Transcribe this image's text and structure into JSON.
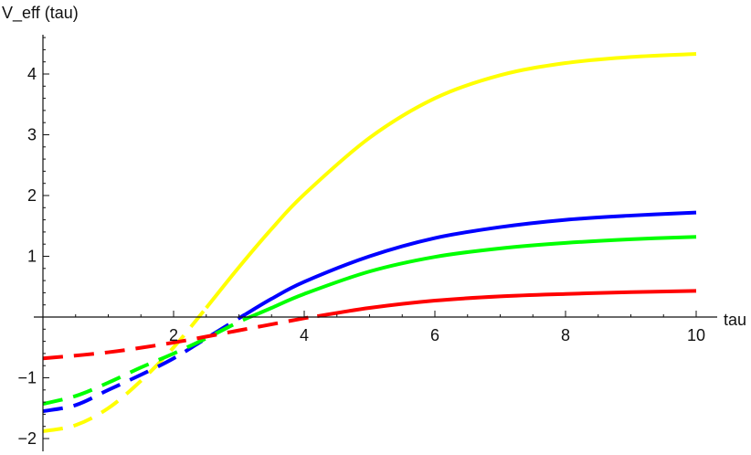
{
  "chart_data": {
    "type": "line",
    "title": "",
    "xlabel": "tau",
    "ylabel": "V_eff (tau)",
    "xlim": [
      0,
      10.5
    ],
    "ylim": [
      -2.2,
      4.7
    ],
    "x_ticks": [
      2,
      4,
      6,
      8,
      10
    ],
    "y_ticks": [
      -2,
      -1,
      1,
      2,
      3,
      4
    ],
    "grid": false,
    "legend": "none",
    "series": [
      {
        "color": "#ffff00",
        "points": [
          [
            0,
            -1.88
          ],
          [
            0.5,
            -1.78
          ],
          [
            1,
            -1.5
          ],
          [
            1.5,
            -1.05
          ],
          [
            2,
            -0.5
          ],
          [
            2.5,
            0.15
          ],
          [
            3,
            0.82
          ],
          [
            3.5,
            1.45
          ],
          [
            4,
            2.02
          ],
          [
            5,
            2.95
          ],
          [
            6,
            3.6
          ],
          [
            7,
            3.98
          ],
          [
            8,
            4.18
          ],
          [
            9,
            4.28
          ],
          [
            10,
            4.33
          ]
        ],
        "dash_until": 2.5
      },
      {
        "color": "#0000ff",
        "points": [
          [
            0,
            -1.55
          ],
          [
            0.5,
            -1.45
          ],
          [
            1,
            -1.2
          ],
          [
            1.5,
            -0.95
          ],
          [
            2,
            -0.68
          ],
          [
            2.5,
            -0.35
          ],
          [
            3,
            -0.02
          ],
          [
            3.5,
            0.3
          ],
          [
            4,
            0.58
          ],
          [
            5,
            1.0
          ],
          [
            6,
            1.3
          ],
          [
            7,
            1.48
          ],
          [
            8,
            1.6
          ],
          [
            9,
            1.67
          ],
          [
            10,
            1.72
          ]
        ],
        "dash_until": 3.1
      },
      {
        "color": "#00ff00",
        "points": [
          [
            0,
            -1.43
          ],
          [
            0.5,
            -1.3
          ],
          [
            1,
            -1.08
          ],
          [
            1.5,
            -0.83
          ],
          [
            2,
            -0.6
          ],
          [
            2.5,
            -0.35
          ],
          [
            3,
            -0.08
          ],
          [
            3.5,
            0.15
          ],
          [
            4,
            0.38
          ],
          [
            5,
            0.75
          ],
          [
            6,
            0.99
          ],
          [
            7,
            1.13
          ],
          [
            8,
            1.22
          ],
          [
            9,
            1.28
          ],
          [
            10,
            1.32
          ]
        ],
        "dash_until": 3.3
      },
      {
        "color": "#ff0000",
        "points": [
          [
            0,
            -0.68
          ],
          [
            1,
            -0.58
          ],
          [
            2,
            -0.42
          ],
          [
            3,
            -0.22
          ],
          [
            4,
            -0.02
          ],
          [
            5,
            0.15
          ],
          [
            6,
            0.27
          ],
          [
            7,
            0.34
          ],
          [
            8,
            0.38
          ],
          [
            9,
            0.41
          ],
          [
            10,
            0.43
          ]
        ],
        "dash_until": 4.2
      }
    ]
  }
}
